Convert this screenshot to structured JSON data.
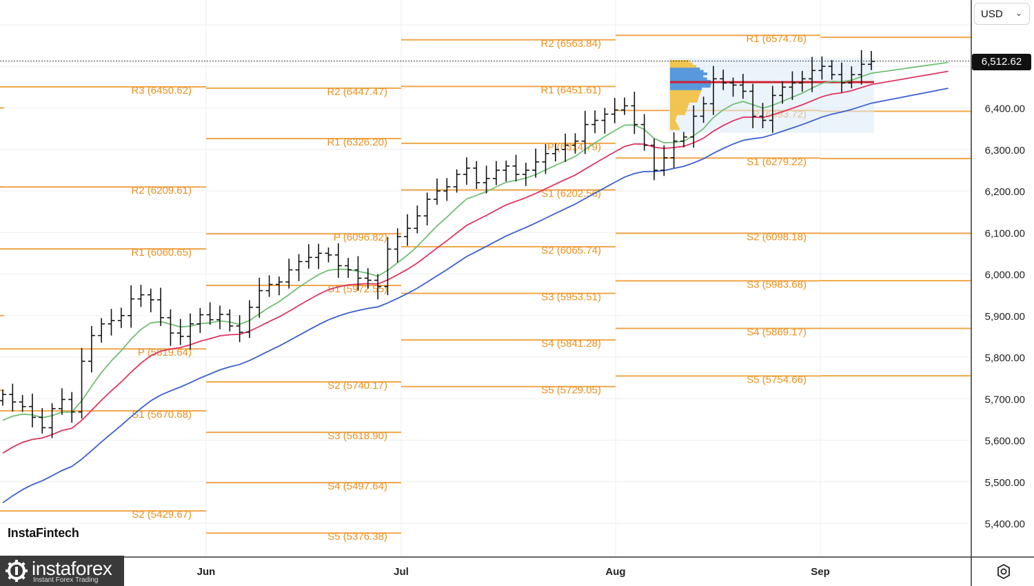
{
  "currency_select": {
    "value": "USD"
  },
  "last_price": "6,512.62",
  "watermark": "InstaFintech",
  "brand": {
    "name": "instaforex",
    "tagline": "Instant Forex Trading"
  },
  "colors": {
    "pivot": "#f0a64a",
    "pivot_text": "#e8901f",
    "ema_green": "#6fbf72",
    "ema_red": "#e0335f",
    "ema_blue": "#3a5fcf",
    "poc": "#cc1f2e",
    "volume_profile": "#4a8fd9",
    "volume_profile_hi": "#f2c040"
  },
  "chart_data": {
    "type": "ohlc",
    "x_ticks": [
      "Jun",
      "Jul",
      "Aug",
      "Sep"
    ],
    "y_ticks": [
      "6,400.00",
      "6,300.00",
      "6,200.00",
      "6,100.00",
      "6,000.00",
      "5,900.00",
      "5,800.00",
      "5,700.00",
      "5,600.00",
      "5,500.00",
      "5,400.00"
    ],
    "ylim": [
      5320,
      6650
    ],
    "pivot_levels": [
      {
        "period": "May",
        "label": "R3 (6450.62)",
        "value": 6450.62
      },
      {
        "period": "May",
        "label": "R2 (6209.61)",
        "value": 6209.61
      },
      {
        "period": "May",
        "label": "R1 (6060.65)",
        "value": 6060.65
      },
      {
        "period": "May",
        "label": "P (5819.64)",
        "value": 5819.64
      },
      {
        "period": "May",
        "label": "S1 (5670.68)",
        "value": 5670.68
      },
      {
        "period": "May",
        "label": "S2 (5429.67)",
        "value": 5429.67
      },
      {
        "period": "Jun",
        "label": "R2 (6447.47)",
        "value": 6447.47
      },
      {
        "period": "Jun",
        "label": "R1 (6326.20)",
        "value": 6326.2
      },
      {
        "period": "Jun",
        "label": "P (6096.82)",
        "value": 6096.82
      },
      {
        "period": "Jun",
        "label": "S1 (5972.55)",
        "value": 5972.55
      },
      {
        "period": "Jun",
        "label": "S2 (5740.17)",
        "value": 5740.17
      },
      {
        "period": "Jun",
        "label": "S3 (5618.90)",
        "value": 5618.9
      },
      {
        "period": "Jun",
        "label": "S4 (5497.64)",
        "value": 5497.64
      },
      {
        "period": "Jun",
        "label": "S5 (5376.38)",
        "value": 5376.38
      },
      {
        "period": "Jul",
        "label": "R2 (6563.84)",
        "value": 6563.84
      },
      {
        "period": "Jul",
        "label": "R1 (6451.61)",
        "value": 6451.61
      },
      {
        "period": "Jul",
        "label": "P (6314.79)",
        "value": 6314.79
      },
      {
        "period": "Jul",
        "label": "S1 (6202.56)",
        "value": 6202.56
      },
      {
        "period": "Jul",
        "label": "S2 (6065.74)",
        "value": 6065.74
      },
      {
        "period": "Jul",
        "label": "S3 (5953.51)",
        "value": 5953.51
      },
      {
        "period": "Jul",
        "label": "S4 (5841.28)",
        "value": 5841.28
      },
      {
        "period": "Jul",
        "label": "S5 (5729.05)",
        "value": 5729.05
      },
      {
        "period": "Aug",
        "label": "R1 (6574.76)",
        "value": 6574.76
      },
      {
        "period": "Aug",
        "label": "P (6393.72)",
        "value": 6393.72
      },
      {
        "period": "Aug",
        "label": "S1 (6279.22)",
        "value": 6279.22
      },
      {
        "period": "Aug",
        "label": "S2 (6098.18)",
        "value": 6098.18
      },
      {
        "period": "Aug",
        "label": "S3 (5983.68)",
        "value": 5983.68
      },
      {
        "period": "Aug",
        "label": "S4 (5869.17)",
        "value": 5869.17
      },
      {
        "period": "Aug",
        "label": "S5 (5754.66)",
        "value": 5754.66
      }
    ],
    "prices": [
      5710,
      5692,
      5681,
      5655,
      5630,
      5676,
      5698,
      5668,
      5790,
      5852,
      5880,
      5888,
      5900,
      5940,
      5950,
      5938,
      5895,
      5858,
      5850,
      5880,
      5902,
      5890,
      5903,
      5875,
      5860,
      5920,
      5960,
      5975,
      5981,
      6010,
      6030,
      6040,
      6050,
      6046,
      6020,
      6010,
      5990,
      5985,
      5970,
      6060,
      6090,
      6110,
      6140,
      6180,
      6200,
      6210,
      6240,
      6255,
      6220,
      6230,
      6250,
      6260,
      6240,
      6250,
      6270,
      6290,
      6300,
      6310,
      6320,
      6360,
      6370,
      6385,
      6395,
      6405,
      6360,
      6310,
      6250,
      6280,
      6320,
      6330,
      6380,
      6410,
      6470,
      6460,
      6455,
      6440,
      6380,
      6370,
      6430,
      6450,
      6460,
      6470,
      6490,
      6500,
      6480,
      6460,
      6480,
      6505,
      6512
    ]
  }
}
